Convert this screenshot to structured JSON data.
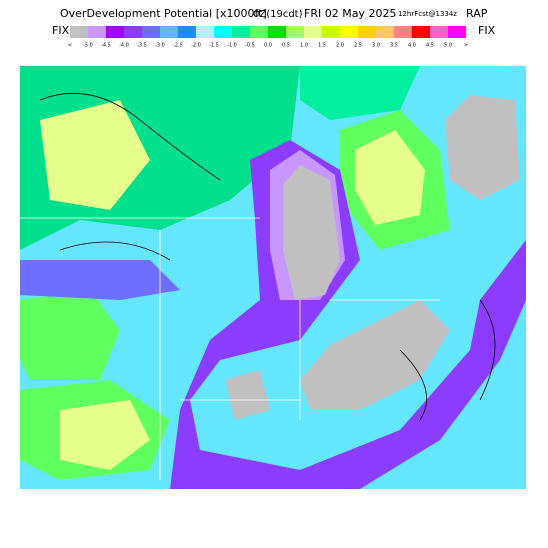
{
  "header": {
    "title": "OverDevelopment Potential [x1000ft]",
    "time": "0Z(19cdt)",
    "date": "FRI 02 May 2025",
    "forecast": "12hrFcst@1334z",
    "model": "RAP"
  },
  "colorbar": {
    "left_label": "FIX",
    "right_label": "FIX",
    "labels": [
      "<",
      "-5.0",
      "-4.5",
      "-4.0",
      "-3.5",
      "-3.0",
      "-2.5",
      "-2.0",
      "-1.5",
      "-1.0",
      "-0.5",
      "0.0",
      "0.5",
      "1.0",
      "1.5",
      "2.0",
      "2.5",
      "3.0",
      "3.5",
      "4.0",
      "4.5",
      "5.0",
      ">"
    ],
    "colors": [
      "#c0c0c0",
      "#c896ff",
      "#a000ff",
      "#8c3cff",
      "#6e6eff",
      "#64b4ff",
      "#1e8cff",
      "#b4f0ff",
      "#00ffff",
      "#00f0a0",
      "#60ff60",
      "#00e000",
      "#a0ff60",
      "#e6ff8c",
      "#c8ff00",
      "#ffff00",
      "#ffd200",
      "#ffc864",
      "#ff8080",
      "#ff0000",
      "#ff64c8",
      "#ff00ff"
    ]
  }
}
